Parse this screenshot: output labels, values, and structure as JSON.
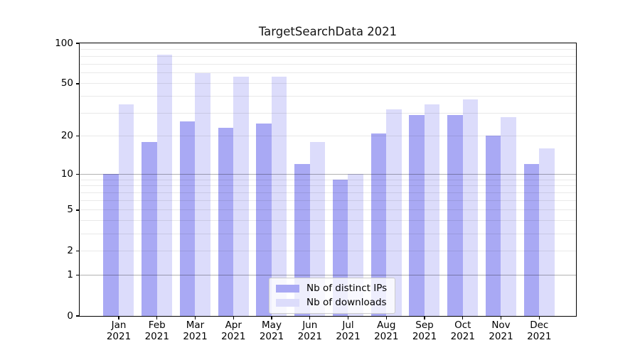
{
  "chart_data": {
    "type": "bar",
    "title": "TargetSearchData 2021",
    "xlabel": "",
    "ylabel": "",
    "y_scale": "log10(1+x)",
    "ylim": [
      0,
      100
    ],
    "yticks": [
      0,
      1,
      2,
      5,
      10,
      20,
      50,
      100
    ],
    "grid": {
      "major_values": [
        1,
        10
      ],
      "minor_values": [
        2,
        3,
        4,
        5,
        6,
        7,
        8,
        9,
        20,
        30,
        40,
        50,
        60,
        70,
        80,
        90
      ]
    },
    "legend_position": "lower center",
    "categories": [
      {
        "month": "Jan",
        "year": "2021"
      },
      {
        "month": "Feb",
        "year": "2021"
      },
      {
        "month": "Mar",
        "year": "2021"
      },
      {
        "month": "Apr",
        "year": "2021"
      },
      {
        "month": "May",
        "year": "2021"
      },
      {
        "month": "Jun",
        "year": "2021"
      },
      {
        "month": "Jul",
        "year": "2021"
      },
      {
        "month": "Aug",
        "year": "2021"
      },
      {
        "month": "Sep",
        "year": "2021"
      },
      {
        "month": "Oct",
        "year": "2021"
      },
      {
        "month": "Nov",
        "year": "2021"
      },
      {
        "month": "Dec",
        "year": "2021"
      }
    ],
    "series": [
      {
        "name": "Nb of distinct IPs",
        "color": "#a9a9f4",
        "values": [
          10,
          18,
          26,
          23,
          25,
          12,
          9,
          21,
          29,
          29,
          20,
          12
        ]
      },
      {
        "name": "Nb of downloads",
        "color": "#dcdcfb",
        "values": [
          35,
          82,
          60,
          56,
          56,
          18,
          10,
          32,
          35,
          38,
          28,
          16
        ]
      }
    ]
  }
}
